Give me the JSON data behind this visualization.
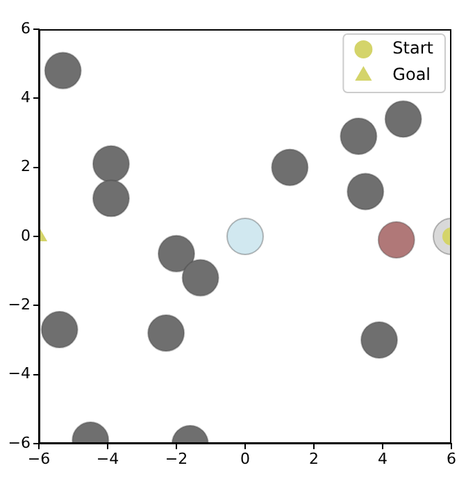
{
  "chart_data": {
    "type": "scatter",
    "xlim": [
      -6,
      6
    ],
    "ylim": [
      -6,
      6
    ],
    "xticks": [
      -6,
      -4,
      -2,
      0,
      2,
      4,
      6
    ],
    "yticks": [
      -6,
      -4,
      -2,
      0,
      2,
      4,
      6
    ],
    "grid": false,
    "legend": "top right",
    "series": [
      {
        "color": "#6f6f6f",
        "marker": "circle",
        "x": [
          -5.3,
          -3.9,
          -3.9,
          1.3,
          3.3,
          4.6,
          3.5,
          -2.0,
          -1.3,
          -5.4,
          -2.3,
          3.9,
          -4.5,
          -1.6
        ],
        "values": [
          4.8,
          2.1,
          1.1,
          2.0,
          2.9,
          3.4,
          1.3,
          -0.5,
          -1.2,
          -2.7,
          -2.8,
          -3.0,
          -5.9,
          -6.0
        ]
      },
      {
        "color": "#d1e8f0",
        "marker": "circle",
        "x": [
          0
        ],
        "values": [
          0
        ]
      },
      {
        "color": "#b07878",
        "marker": "circle",
        "x": [
          4.4
        ],
        "values": [
          -0.1
        ]
      },
      {
        "color": "#d9d9d9",
        "marker": "circle",
        "x": [
          6
        ],
        "values": [
          0
        ]
      },
      {
        "name": "Start",
        "color": "#d4d46a",
        "marker": "circle",
        "x": [
          6
        ],
        "values": [
          0
        ]
      },
      {
        "name": "Goal",
        "color": "#d4d46a",
        "marker": "triangle",
        "x": [
          -6
        ],
        "values": [
          0
        ]
      }
    ]
  }
}
